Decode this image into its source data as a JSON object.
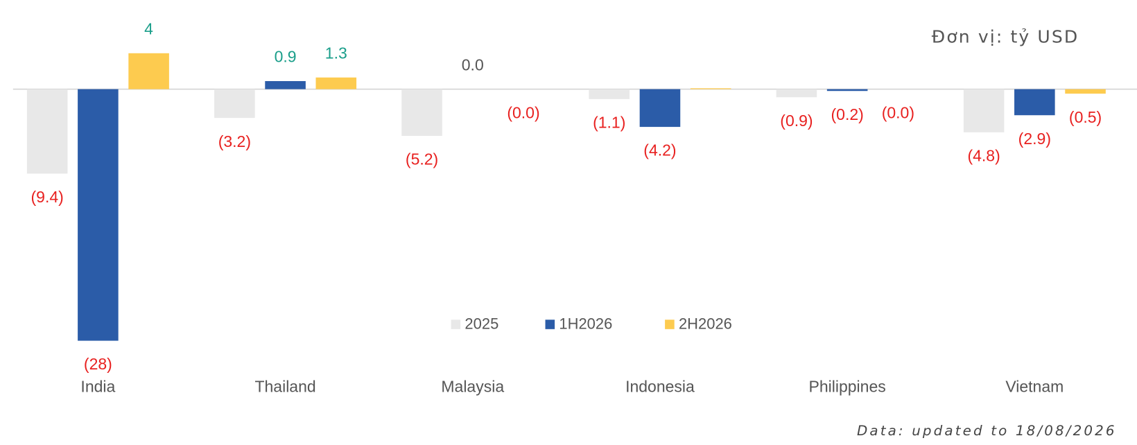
{
  "chart_data": {
    "type": "bar",
    "unit_note": "Đơn vị: tỷ USD",
    "footnote": "Data: updated to 18/08/2026",
    "categories": [
      "India",
      "Thailand",
      "Malaysia",
      "Indonesia",
      "Philippines",
      "Vietnam"
    ],
    "series": [
      {
        "name": "2025",
        "color": "#e8e8e8",
        "values": [
          -9.4,
          -3.2,
          -5.2,
          -1.1,
          -0.9,
          -4.8
        ],
        "value_labels": [
          "(9.4)",
          "(3.2)",
          "(5.2)",
          "(1.1)",
          "(0.9)",
          "(4.8)"
        ]
      },
      {
        "name": "1H2026",
        "color": "#2b5ca8",
        "values": [
          -28,
          0.9,
          0,
          -4.2,
          -0.2,
          -2.9
        ],
        "value_labels": [
          "(28)",
          "0.9",
          "0.0",
          "(4.2)",
          "(0.2)",
          "(2.9)"
        ]
      },
      {
        "name": "2H2026",
        "color": "#fdcb4f",
        "values": [
          4,
          1.3,
          0,
          0.1,
          0,
          -0.5
        ],
        "value_labels": [
          "4",
          "1.3",
          "(0.0)",
          null,
          "(0.0)",
          "(0.5)"
        ]
      }
    ],
    "legend": "bottom-center"
  }
}
